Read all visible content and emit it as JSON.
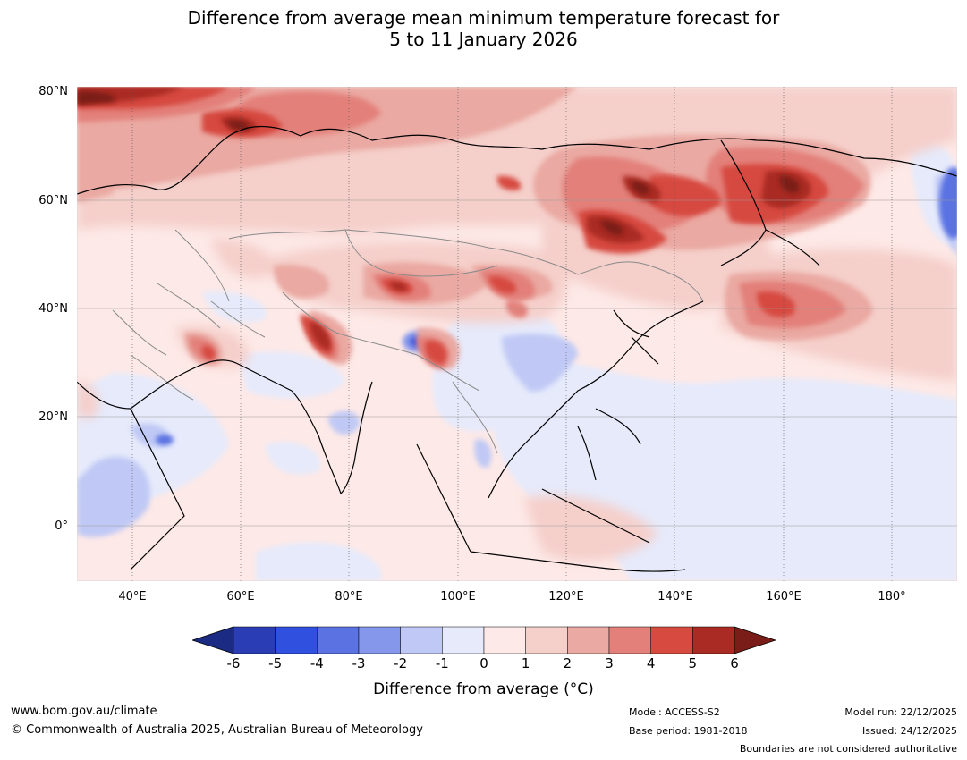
{
  "title": {
    "line1": "Difference from average mean minimum temperature forecast for",
    "line2": "5 to 11 January 2026"
  },
  "map": {
    "region": "Asia",
    "lat_labels": [
      "80°N",
      "60°N",
      "40°N",
      "20°N",
      "0°"
    ],
    "lon_labels": [
      "40°E",
      "60°E",
      "80°E",
      "100°E",
      "120°E",
      "140°E",
      "160°E",
      "180°"
    ]
  },
  "colorbar": {
    "ticks": [
      "-6",
      "-5",
      "-4",
      "-3",
      "-2",
      "-1",
      "0",
      "1",
      "2",
      "3",
      "4",
      "5",
      "6"
    ],
    "colors": [
      "#1b2a82",
      "#2a3db5",
      "#3050e0",
      "#5a72e2",
      "#8597ea",
      "#c0c9f5",
      "#e6eafb",
      "#fde9e7",
      "#f5cfca",
      "#eaa9a2",
      "#e3807a",
      "#d64a3f",
      "#a92b23",
      "#7a1d18"
    ],
    "label": "Difference from average (°C)"
  },
  "footer": {
    "website": "www.bom.gov.au/climate",
    "copyright": "© Commonwealth of Australia 2025, Australian Bureau of Meteorology",
    "model": "Model: ACCESS-S2",
    "base_period": "Base period: 1981-2018",
    "model_run": "Model run: 22/12/2025",
    "issued": "Issued: 24/12/2025",
    "disclaimer": "Boundaries are not considered authoritative"
  }
}
